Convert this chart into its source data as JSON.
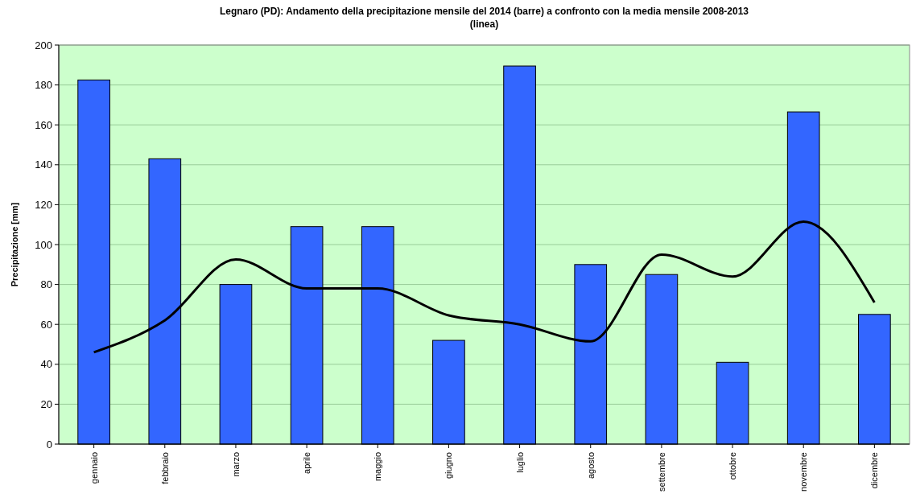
{
  "chart_data": {
    "type": "bar",
    "title": "Legnaro (PD): Andamento della precipitazione mensile del 2014 (barre) a confronto con la media mensile 2008-2013 (linea)",
    "ylabel": "Precipitazione [mm]",
    "categories": [
      "gennaio",
      "febbraio",
      "marzo",
      "aprile",
      "maggio",
      "giugno",
      "luglio",
      "agosto",
      "settembre",
      "ottobre",
      "novembre",
      "dicembre"
    ],
    "series": [
      {
        "color": "#3366ff",
        "values": [
          182.5,
          143,
          80,
          109,
          109,
          52,
          189.5,
          90,
          85,
          41,
          166.5,
          65
        ]
      },
      {
        "type": "line",
        "color": "#000000",
        "values": [
          46,
          62,
          92.5,
          78,
          78,
          64.5,
          60,
          51.5,
          95,
          84,
          111.5,
          71
        ]
      }
    ],
    "ylim": [
      0,
      200
    ],
    "yticks": [
      0,
      20,
      40,
      60,
      80,
      100,
      120,
      140,
      160,
      180,
      200
    ],
    "grid": "y",
    "marker": "none"
  }
}
